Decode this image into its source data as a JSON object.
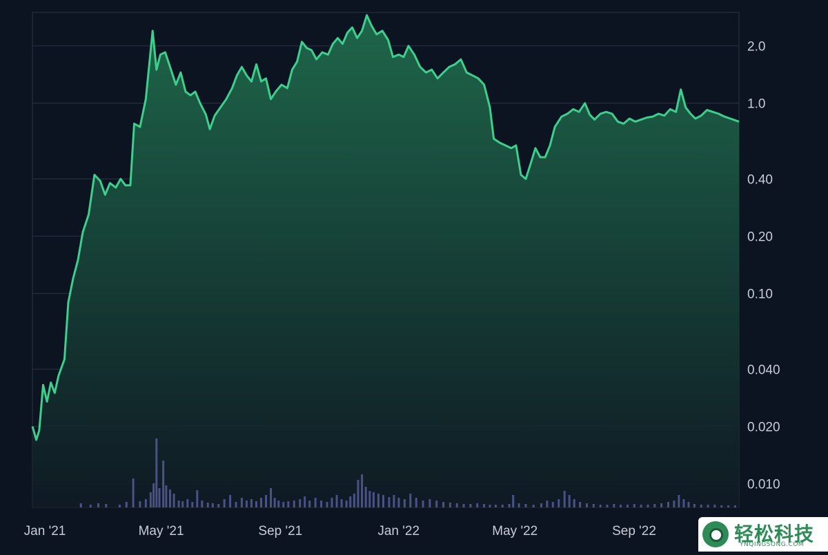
{
  "chart_data": {
    "type": "area",
    "yscale": "log",
    "ylim": [
      0.0075,
      3.0
    ],
    "y_ticks": [
      {
        "v": 2.0,
        "label": "2.0"
      },
      {
        "v": 1.0,
        "label": "1.0"
      },
      {
        "v": 0.4,
        "label": "0.40"
      },
      {
        "v": 0.2,
        "label": "0.20"
      },
      {
        "v": 0.1,
        "label": "0.10"
      },
      {
        "v": 0.04,
        "label": "0.040"
      },
      {
        "v": 0.02,
        "label": "0.020"
      },
      {
        "v": 0.01,
        "label": "0.010"
      }
    ],
    "x_ticks": [
      "Jan '21",
      "May '21",
      "Sep '21",
      "Jan '22",
      "May '22",
      "Sep '22"
    ],
    "x_start": "2021-01-01",
    "x_end": "2022-12-31",
    "grid": true,
    "colors": {
      "line": "#3ecf8e",
      "area_top": "#1f6b4c",
      "area_bottom": "#0f1a24",
      "volume": "#4a5287",
      "background": "#0d1421",
      "grid": "#2a3344",
      "text": "#c7ccd6"
    },
    "price": [
      [
        "2021-01-01",
        0.02
      ],
      [
        "2021-01-05",
        0.017
      ],
      [
        "2021-01-08",
        0.019
      ],
      [
        "2021-01-12",
        0.033
      ],
      [
        "2021-01-16",
        0.027
      ],
      [
        "2021-01-20",
        0.034
      ],
      [
        "2021-01-24",
        0.03
      ],
      [
        "2021-01-28",
        0.037
      ],
      [
        "2021-02-03",
        0.045
      ],
      [
        "2021-02-07",
        0.09
      ],
      [
        "2021-02-12",
        0.12
      ],
      [
        "2021-02-17",
        0.15
      ],
      [
        "2021-02-22",
        0.21
      ],
      [
        "2021-02-28",
        0.26
      ],
      [
        "2021-03-06",
        0.42
      ],
      [
        "2021-03-12",
        0.39
      ],
      [
        "2021-03-17",
        0.33
      ],
      [
        "2021-03-22",
        0.38
      ],
      [
        "2021-03-28",
        0.36
      ],
      [
        "2021-04-02",
        0.4
      ],
      [
        "2021-04-07",
        0.37
      ],
      [
        "2021-04-12",
        0.37
      ],
      [
        "2021-04-16",
        0.78
      ],
      [
        "2021-04-22",
        0.75
      ],
      [
        "2021-04-28",
        1.05
      ],
      [
        "2021-05-05",
        2.4
      ],
      [
        "2021-05-09",
        1.5
      ],
      [
        "2021-05-13",
        1.8
      ],
      [
        "2021-05-18",
        1.85
      ],
      [
        "2021-05-23",
        1.55
      ],
      [
        "2021-05-29",
        1.25
      ],
      [
        "2021-06-03",
        1.45
      ],
      [
        "2021-06-08",
        1.15
      ],
      [
        "2021-06-13",
        1.1
      ],
      [
        "2021-06-18",
        1.15
      ],
      [
        "2021-06-23",
        1.0
      ],
      [
        "2021-06-29",
        0.87
      ],
      [
        "2021-07-03",
        0.73
      ],
      [
        "2021-07-08",
        0.86
      ],
      [
        "2021-07-14",
        0.95
      ],
      [
        "2021-07-20",
        1.05
      ],
      [
        "2021-07-26",
        1.2
      ],
      [
        "2021-07-31",
        1.4
      ],
      [
        "2021-08-05",
        1.55
      ],
      [
        "2021-08-10",
        1.4
      ],
      [
        "2021-08-15",
        1.3
      ],
      [
        "2021-08-20",
        1.6
      ],
      [
        "2021-08-25",
        1.3
      ],
      [
        "2021-08-30",
        1.35
      ],
      [
        "2021-09-04",
        1.05
      ],
      [
        "2021-09-09",
        1.15
      ],
      [
        "2021-09-15",
        1.25
      ],
      [
        "2021-09-21",
        1.2
      ],
      [
        "2021-09-26",
        1.5
      ],
      [
        "2021-10-01",
        1.65
      ],
      [
        "2021-10-06",
        2.1
      ],
      [
        "2021-10-11",
        1.95
      ],
      [
        "2021-10-16",
        1.9
      ],
      [
        "2021-10-21",
        1.7
      ],
      [
        "2021-10-27",
        1.85
      ],
      [
        "2021-11-02",
        1.8
      ],
      [
        "2021-11-07",
        2.05
      ],
      [
        "2021-11-12",
        2.2
      ],
      [
        "2021-11-17",
        2.05
      ],
      [
        "2021-11-22",
        2.35
      ],
      [
        "2021-11-27",
        2.5
      ],
      [
        "2021-12-02",
        2.2
      ],
      [
        "2021-12-07",
        2.4
      ],
      [
        "2021-12-12",
        2.9
      ],
      [
        "2021-12-17",
        2.55
      ],
      [
        "2021-12-22",
        2.3
      ],
      [
        "2021-12-28",
        2.4
      ],
      [
        "2022-01-03",
        2.15
      ],
      [
        "2022-01-08",
        1.75
      ],
      [
        "2022-01-14",
        1.8
      ],
      [
        "2022-01-19",
        1.75
      ],
      [
        "2022-01-24",
        2.0
      ],
      [
        "2022-01-30",
        1.8
      ],
      [
        "2022-02-05",
        1.55
      ],
      [
        "2022-02-11",
        1.45
      ],
      [
        "2022-02-17",
        1.5
      ],
      [
        "2022-02-23",
        1.35
      ],
      [
        "2022-03-01",
        1.45
      ],
      [
        "2022-03-07",
        1.55
      ],
      [
        "2022-03-13",
        1.6
      ],
      [
        "2022-03-19",
        1.7
      ],
      [
        "2022-03-25",
        1.45
      ],
      [
        "2022-03-31",
        1.4
      ],
      [
        "2022-04-06",
        1.35
      ],
      [
        "2022-04-12",
        1.25
      ],
      [
        "2022-04-18",
        0.95
      ],
      [
        "2022-04-22",
        0.65
      ],
      [
        "2022-04-28",
        0.62
      ],
      [
        "2022-05-04",
        0.6
      ],
      [
        "2022-05-10",
        0.58
      ],
      [
        "2022-05-15",
        0.6
      ],
      [
        "2022-05-20",
        0.42
      ],
      [
        "2022-05-25",
        0.4
      ],
      [
        "2022-05-30",
        0.48
      ],
      [
        "2022-06-04",
        0.58
      ],
      [
        "2022-06-09",
        0.52
      ],
      [
        "2022-06-14",
        0.52
      ],
      [
        "2022-06-19",
        0.6
      ],
      [
        "2022-06-24",
        0.75
      ],
      [
        "2022-07-01",
        0.85
      ],
      [
        "2022-07-07",
        0.88
      ],
      [
        "2022-07-13",
        0.93
      ],
      [
        "2022-07-19",
        0.9
      ],
      [
        "2022-07-25",
        1.0
      ],
      [
        "2022-07-30",
        0.87
      ],
      [
        "2022-08-04",
        0.82
      ],
      [
        "2022-08-10",
        0.88
      ],
      [
        "2022-08-16",
        0.9
      ],
      [
        "2022-08-22",
        0.88
      ],
      [
        "2022-08-28",
        0.8
      ],
      [
        "2022-09-03",
        0.78
      ],
      [
        "2022-09-09",
        0.83
      ],
      [
        "2022-09-15",
        0.8
      ],
      [
        "2022-09-21",
        0.82
      ],
      [
        "2022-09-27",
        0.84
      ],
      [
        "2022-10-03",
        0.85
      ],
      [
        "2022-10-09",
        0.88
      ],
      [
        "2022-10-15",
        0.86
      ],
      [
        "2022-10-21",
        0.93
      ],
      [
        "2022-10-27",
        0.9
      ],
      [
        "2022-11-01",
        1.18
      ],
      [
        "2022-11-06",
        0.95
      ],
      [
        "2022-11-11",
        0.88
      ],
      [
        "2022-11-16",
        0.83
      ],
      [
        "2022-11-22",
        0.86
      ],
      [
        "2022-11-28",
        0.92
      ],
      [
        "2022-12-04",
        0.9
      ],
      [
        "2022-12-10",
        0.88
      ],
      [
        "2022-12-16",
        0.85
      ],
      [
        "2022-12-22",
        0.83
      ],
      [
        "2022-12-31",
        0.8
      ]
    ],
    "volume": [
      [
        "2021-02-20",
        6
      ],
      [
        "2021-03-02",
        4
      ],
      [
        "2021-03-10",
        6
      ],
      [
        "2021-03-18",
        5
      ],
      [
        "2021-04-01",
        4
      ],
      [
        "2021-04-08",
        8
      ],
      [
        "2021-04-15",
        42
      ],
      [
        "2021-04-22",
        9
      ],
      [
        "2021-04-28",
        12
      ],
      [
        "2021-05-03",
        22
      ],
      [
        "2021-05-06",
        35
      ],
      [
        "2021-05-09",
        100
      ],
      [
        "2021-05-12",
        28
      ],
      [
        "2021-05-16",
        68
      ],
      [
        "2021-05-19",
        32
      ],
      [
        "2021-05-23",
        26
      ],
      [
        "2021-05-27",
        20
      ],
      [
        "2021-06-01",
        10
      ],
      [
        "2021-06-05",
        9
      ],
      [
        "2021-06-10",
        12
      ],
      [
        "2021-06-15",
        8
      ],
      [
        "2021-06-20",
        25
      ],
      [
        "2021-06-25",
        10
      ],
      [
        "2021-07-01",
        7
      ],
      [
        "2021-07-06",
        6
      ],
      [
        "2021-07-12",
        5
      ],
      [
        "2021-07-18",
        12
      ],
      [
        "2021-07-24",
        18
      ],
      [
        "2021-07-30",
        8
      ],
      [
        "2021-08-05",
        14
      ],
      [
        "2021-08-10",
        10
      ],
      [
        "2021-08-15",
        12
      ],
      [
        "2021-08-20",
        9
      ],
      [
        "2021-08-25",
        14
      ],
      [
        "2021-08-30",
        18
      ],
      [
        "2021-09-04",
        28
      ],
      [
        "2021-09-08",
        14
      ],
      [
        "2021-09-12",
        10
      ],
      [
        "2021-09-17",
        8
      ],
      [
        "2021-09-22",
        9
      ],
      [
        "2021-09-28",
        10
      ],
      [
        "2021-10-04",
        12
      ],
      [
        "2021-10-09",
        16
      ],
      [
        "2021-10-14",
        10
      ],
      [
        "2021-10-20",
        14
      ],
      [
        "2021-10-26",
        10
      ],
      [
        "2021-11-01",
        8
      ],
      [
        "2021-11-06",
        14
      ],
      [
        "2021-11-11",
        18
      ],
      [
        "2021-11-16",
        12
      ],
      [
        "2021-11-21",
        10
      ],
      [
        "2021-11-25",
        16
      ],
      [
        "2021-11-29",
        20
      ],
      [
        "2021-12-03",
        40
      ],
      [
        "2021-12-07",
        48
      ],
      [
        "2021-12-11",
        30
      ],
      [
        "2021-12-15",
        24
      ],
      [
        "2021-12-19",
        22
      ],
      [
        "2021-12-24",
        20
      ],
      [
        "2021-12-29",
        18
      ],
      [
        "2022-01-04",
        15
      ],
      [
        "2022-01-09",
        18
      ],
      [
        "2022-01-14",
        14
      ],
      [
        "2022-01-20",
        12
      ],
      [
        "2022-01-26",
        20
      ],
      [
        "2022-02-01",
        14
      ],
      [
        "2022-02-08",
        10
      ],
      [
        "2022-02-15",
        12
      ],
      [
        "2022-02-22",
        10
      ],
      [
        "2022-03-01",
        8
      ],
      [
        "2022-03-08",
        7
      ],
      [
        "2022-03-15",
        6
      ],
      [
        "2022-03-22",
        5
      ],
      [
        "2022-03-29",
        5
      ],
      [
        "2022-04-05",
        6
      ],
      [
        "2022-04-12",
        5
      ],
      [
        "2022-04-18",
        4
      ],
      [
        "2022-04-24",
        4
      ],
      [
        "2022-05-01",
        4
      ],
      [
        "2022-05-08",
        5
      ],
      [
        "2022-05-12",
        18
      ],
      [
        "2022-05-18",
        6
      ],
      [
        "2022-05-25",
        5
      ],
      [
        "2022-06-02",
        4
      ],
      [
        "2022-06-10",
        6
      ],
      [
        "2022-06-16",
        10
      ],
      [
        "2022-06-22",
        8
      ],
      [
        "2022-06-28",
        12
      ],
      [
        "2022-07-04",
        24
      ],
      [
        "2022-07-09",
        18
      ],
      [
        "2022-07-14",
        12
      ],
      [
        "2022-07-20",
        8
      ],
      [
        "2022-07-27",
        6
      ],
      [
        "2022-08-03",
        5
      ],
      [
        "2022-08-10",
        4
      ],
      [
        "2022-08-17",
        4
      ],
      [
        "2022-08-24",
        5
      ],
      [
        "2022-08-31",
        4
      ],
      [
        "2022-09-07",
        4
      ],
      [
        "2022-09-14",
        5
      ],
      [
        "2022-09-21",
        4
      ],
      [
        "2022-09-28",
        4
      ],
      [
        "2022-10-05",
        5
      ],
      [
        "2022-10-12",
        6
      ],
      [
        "2022-10-19",
        8
      ],
      [
        "2022-10-25",
        10
      ],
      [
        "2022-10-30",
        18
      ],
      [
        "2022-11-04",
        12
      ],
      [
        "2022-11-09",
        8
      ],
      [
        "2022-11-15",
        5
      ],
      [
        "2022-11-22",
        4
      ],
      [
        "2022-11-29",
        4
      ],
      [
        "2022-12-06",
        4
      ],
      [
        "2022-12-13",
        3
      ],
      [
        "2022-12-20",
        3
      ],
      [
        "2022-12-27",
        3
      ]
    ]
  },
  "watermark": {
    "title": "轻松科技",
    "subtitle": "YNQINGSONG.COM"
  }
}
